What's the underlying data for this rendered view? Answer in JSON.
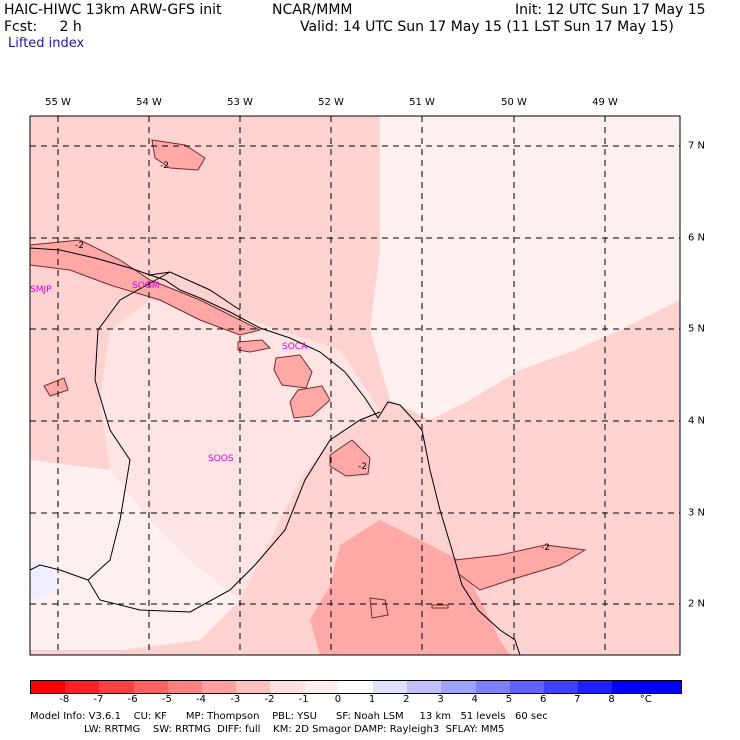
{
  "header": {
    "model": "HAIC-HIWC 13km ARW-GFS init",
    "org": "NCAR/MMM",
    "init": "Init: 12 UTC Sun 17 May 15",
    "fcst": "Fcst:     2 h",
    "valid": "Valid: 14 UTC Sun 17 May 15 (11 LST Sun 17 May 15)",
    "field": "Lifted index"
  },
  "map": {
    "lon_labels": [
      "55 W",
      "54 W",
      "53 W",
      "52 W",
      "51 W",
      "50 W",
      "49 W"
    ],
    "lat_labels": [
      "7 N",
      "6 N",
      "5 N",
      "4 N",
      "3 N",
      "2 N"
    ],
    "stations": [
      "SMJP",
      "SOCA",
      "SOOS",
      "SOGM"
    ],
    "contour_labels": [
      "-2",
      "-2",
      "-2",
      "-2"
    ]
  },
  "colorbar": {
    "colors": [
      "#ff0000",
      "#ff2020",
      "#ff4040",
      "#ff6060",
      "#ff8080",
      "#ffa0a0",
      "#ffc0c0",
      "#ffe0e0",
      "#fff0f0",
      "#ffffff",
      "#e0e0ff",
      "#c0c0ff",
      "#a0a0ff",
      "#8080ff",
      "#6060ff",
      "#4040ff",
      "#2020ff",
      "#0000ff",
      "#0000ff"
    ],
    "labels": [
      "-8",
      "-7",
      "-6",
      "-5",
      "-4",
      "-3",
      "-2",
      "-1",
      "0",
      "1",
      "2",
      "3",
      "4",
      "5",
      "6",
      "7",
      "8",
      "°C"
    ]
  },
  "footer": {
    "line1": "Model Info: V3.6.1    CU: KF      MP: Thompson    PBL: YSU      SF: Noah LSM     13 km   51 levels   60 sec",
    "line2": "                 LW: RRTMG    SW: RRTMG  DIFF: full    KM: 2D Smagor DAMP: Rayleigh3  SFLAY: MM5"
  }
}
